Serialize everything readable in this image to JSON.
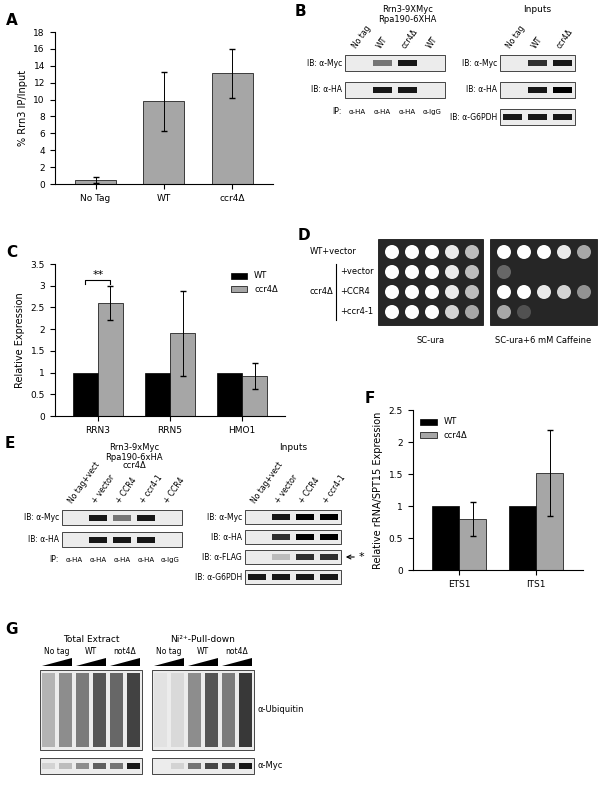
{
  "chart_data": [
    {
      "type": "bar",
      "title": "A",
      "y_label": "% Rrn3 IP/Input",
      "categories": [
        "No Tag",
        "WT",
        "ccr4Δ"
      ],
      "values": [
        0.5,
        9.8,
        13.1
      ],
      "errors": [
        0.35,
        3.5,
        2.9
      ],
      "color": "#a6a6a6",
      "ylim": [
        0,
        18
      ],
      "yticks": [
        0,
        2,
        4,
        6,
        8,
        10,
        12,
        14,
        16,
        18
      ]
    },
    {
      "type": "bar",
      "title": "C",
      "y_label": "Relative Expression",
      "categories": [
        "RRN3",
        "RRN5",
        "HMO1"
      ],
      "series": [
        {
          "name": "WT",
          "color": "#000000",
          "values": [
            1,
            1,
            1
          ]
        },
        {
          "name": "ccr4Δ",
          "color": "#a6a6a6",
          "values": [
            2.6,
            1.9,
            0.92
          ],
          "errors": [
            0.4,
            0.98,
            0.3
          ]
        }
      ],
      "annotations": [
        {
          "text": "**",
          "category": "RRN3"
        }
      ],
      "legend": "upper right",
      "ylim": [
        0,
        3.5
      ],
      "yticks": [
        0,
        0.5,
        1,
        1.5,
        2,
        2.5,
        3,
        3.5
      ]
    },
    {
      "type": "bar",
      "title": "F",
      "y_label": "Relative rRNA/SPT15 Expression",
      "categories": [
        "ETS1",
        "ITS1"
      ],
      "series": [
        {
          "name": "WT",
          "color": "#000000",
          "values": [
            1,
            1
          ]
        },
        {
          "name": "ccr4Δ",
          "color": "#a6a6a6",
          "values": [
            0.8,
            1.52
          ],
          "errors": [
            0.27,
            0.67
          ]
        }
      ],
      "legend": "upper left",
      "ylim": [
        0,
        2.5
      ],
      "yticks": [
        0,
        0.5,
        1,
        1.5,
        2,
        2.5
      ]
    }
  ],
  "blots": {
    "B": {
      "panel": "B",
      "header": [
        "Rrn3-9XMyc",
        "Rpa190-6XHA"
      ],
      "ip": {
        "lanes": [
          "No tag",
          "WT",
          "ccr4Δ",
          "WT"
        ],
        "rows": [
          {
            "label": "IB: α-Myc",
            "bands": [
              0,
              0.5,
              0.9,
              0
            ]
          },
          {
            "label": "IB: α-HA",
            "bands": [
              0,
              0.9,
              0.9,
              0
            ]
          }
        ],
        "ip_label": "IP:",
        "antibodies": [
          "α-HA",
          "α-HA",
          "α-HA",
          "α-IgG"
        ]
      },
      "inputs": {
        "title": "Inputs",
        "lanes": [
          "No tag",
          "WT",
          "ccr4Δ"
        ],
        "rows": [
          {
            "label": "IB: α-Myc",
            "bands": [
              0,
              0.8,
              0.9
            ]
          },
          {
            "label": "IB: α-HA",
            "bands": [
              0,
              0.9,
              1
            ]
          },
          {
            "label": "IB: α-G6PDH",
            "bands": [
              0.9,
              0.9,
              0.9
            ]
          }
        ]
      }
    },
    "D": {
      "panel": "D",
      "group": "ccr4Δ",
      "plates": [
        "SC-ura",
        "SC-ura+6 mM Caffeine"
      ],
      "rows": [
        {
          "label": "WT+vector",
          "in_group": false,
          "growth": [
            [
              1,
              1,
              1,
              0.9,
              0.7
            ],
            [
              1,
              1,
              1,
              0.9,
              0.6
            ]
          ]
        },
        {
          "label": "+vector",
          "in_group": true,
          "growth": [
            [
              1,
              1,
              1,
              0.9,
              0.7
            ],
            [
              0.3,
              0,
              0,
              0,
              0
            ]
          ]
        },
        {
          "label": "+CCR4",
          "in_group": true,
          "growth": [
            [
              1,
              1,
              1,
              0.9,
              0.7
            ],
            [
              1,
              1,
              0.9,
              0.8,
              0.5
            ]
          ]
        },
        {
          "label": "+ccr4-1",
          "in_group": true,
          "growth": [
            [
              1,
              1,
              1,
              0.8,
              0.6
            ],
            [
              0.6,
              0.2,
              0,
              0,
              0
            ]
          ]
        }
      ]
    },
    "E": {
      "panel": "E",
      "header": [
        "Rrn3-9xMyc",
        "Rpa190-6xHA",
        "ccr4Δ"
      ],
      "ip": {
        "lanes": [
          "No tag+vect",
          "+ vector",
          "+ CCR4",
          "+ ccr4-1",
          "+ CCR4"
        ],
        "rows": [
          {
            "label": "IB: α-Myc",
            "bands": [
              0,
              0.9,
              0.5,
              0.9,
              0
            ]
          },
          {
            "label": "IB: α-HA",
            "bands": [
              0,
              0.9,
              0.9,
              0.9,
              0
            ]
          }
        ],
        "ip_label": "IP:",
        "antibodies": [
          "α-HA",
          "α-HA",
          "α-HA",
          "α-HA",
          "α-IgG"
        ]
      },
      "inputs": {
        "title": "Inputs",
        "lanes": [
          "No tag+vect",
          "+ vector",
          "+ CCR4",
          "+ ccr4-1"
        ],
        "rows": [
          {
            "label": "IB: α-Myc",
            "bands": [
              0,
              0.9,
              1,
              1
            ]
          },
          {
            "label": "IB: α-HA",
            "bands": [
              0,
              0.8,
              1,
              1
            ]
          },
          {
            "label": "IB: α-FLAG",
            "bands": [
              0,
              0.2,
              0.8,
              0.8
            ]
          },
          {
            "label": "IB: α-G6PDH",
            "bands": [
              0.9,
              0.9,
              0.9,
              0.9
            ]
          }
        ],
        "band_note": "*"
      }
    },
    "G": {
      "panel": "G",
      "sections": [
        "Total Extract",
        "Ni²⁺-Pull-down"
      ],
      "strains": [
        "No tag",
        "WT",
        "not4Δ"
      ],
      "rows": [
        {
          "label": "α-Ubiquitin",
          "smear": true,
          "bands": [
            0.3,
            0.5,
            0.6,
            0.8,
            0.7,
            0.9,
            0.05,
            0.1,
            0.5,
            0.8,
            0.6,
            0.95
          ]
        },
        {
          "label": "α-Myc",
          "smear": false,
          "bands": [
            0.1,
            0.2,
            0.4,
            0.6,
            0.5,
            0.9,
            0,
            0.1,
            0.5,
            0.7,
            0.7,
            0.9
          ]
        }
      ]
    }
  }
}
